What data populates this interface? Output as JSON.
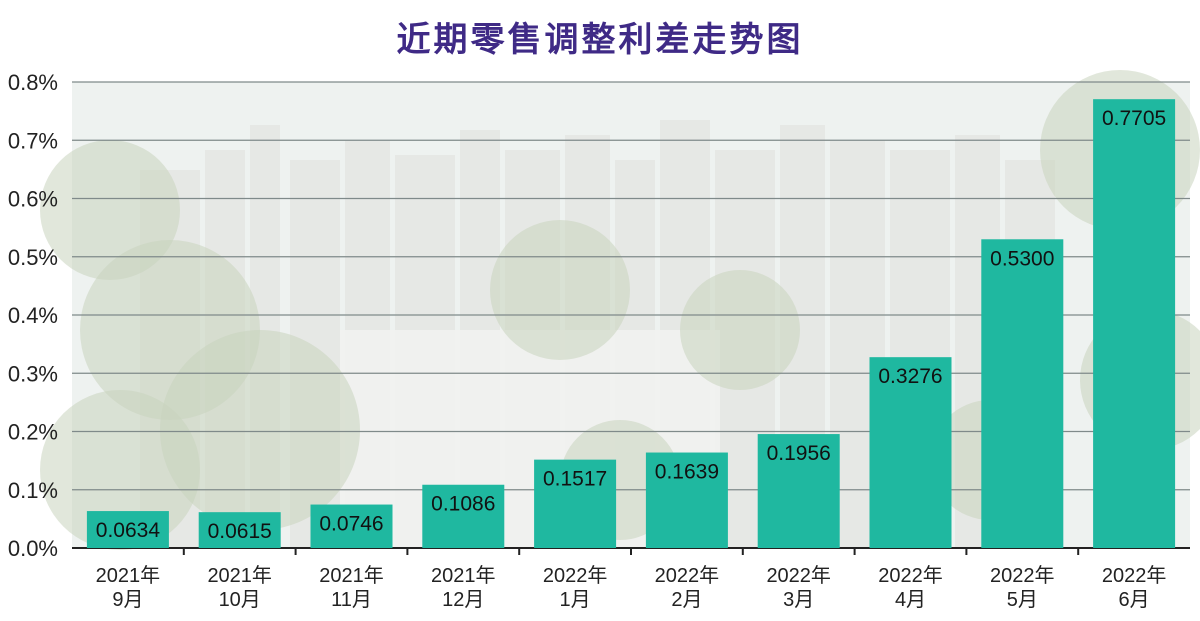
{
  "chart_data": {
    "type": "bar",
    "title": "近期零售调整利差走势图",
    "categories": [
      [
        "2021年",
        "9月"
      ],
      [
        "2021年",
        "10月"
      ],
      [
        "2021年",
        "11月"
      ],
      [
        "2021年",
        "12月"
      ],
      [
        "2022年",
        "1月"
      ],
      [
        "2022年",
        "2月"
      ],
      [
        "2022年",
        "3月"
      ],
      [
        "2022年",
        "4月"
      ],
      [
        "2022年",
        "5月"
      ],
      [
        "2022年",
        "6月"
      ]
    ],
    "values": [
      0.0634,
      0.0615,
      0.0746,
      0.1086,
      0.1517,
      0.1639,
      0.1956,
      0.3276,
      0.53,
      0.7705
    ],
    "value_labels": [
      "0.0634",
      "0.0615",
      "0.0746",
      "0.1086",
      "0.1517",
      "0.1639",
      "0.1956",
      "0.3276",
      "0.5300",
      "0.7705"
    ],
    "ylim": [
      0,
      0.8
    ],
    "yticks": [
      "0.0%",
      "0.1%",
      "0.2%",
      "0.3%",
      "0.4%",
      "0.5%",
      "0.6%",
      "0.7%",
      "0.8%"
    ],
    "grid": true,
    "colors": {
      "bar": "#1fb8a0",
      "title": "#3f2a86",
      "axis": "#222222",
      "grid": "#7f8a8a",
      "background_sky": "#eef2f0",
      "background_trees": "#c9d3bd",
      "background_buildings": "#e4e6e3"
    }
  }
}
